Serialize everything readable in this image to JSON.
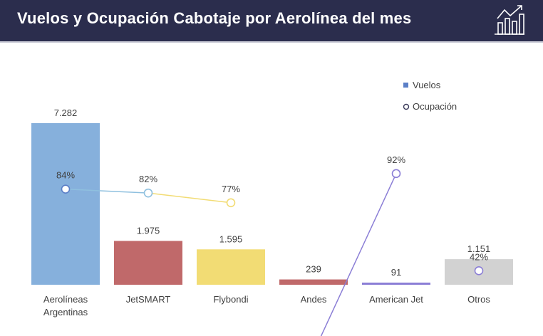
{
  "header": {
    "title": "Vuelos y Ocupación Cabotaje por Aerolínea del mes",
    "icon": "bar-chart-trend-icon",
    "bg_color": "#2b2d4d"
  },
  "chart_data": {
    "type": "bar",
    "title": "",
    "categories": [
      "Aerolíneas Argentinas",
      "JetSMART",
      "Flybondi",
      "Andes",
      "American Jet",
      "Otros"
    ],
    "category_lines": [
      [
        "Aerolíneas",
        "Argentinas"
      ],
      [
        "JetSMART"
      ],
      [
        "Flybondi"
      ],
      [
        "Andes"
      ],
      [
        "American Jet"
      ],
      [
        "Otros"
      ]
    ],
    "series": [
      {
        "name": "Vuelos",
        "type": "bar",
        "values": [
          7282,
          1975,
          1595,
          239,
          91,
          1151
        ],
        "value_labels": [
          "7.282",
          "1.975",
          "1.595",
          "239",
          "91",
          "1.151"
        ],
        "colors": [
          "#86b0dc",
          "#c0696a",
          "#f2dc74",
          "#c0696a",
          "#8b7ed6",
          "#d2d2d2"
        ]
      },
      {
        "name": "Ocupación",
        "type": "line",
        "values": [
          84,
          82,
          77,
          null,
          92,
          42
        ],
        "value_labels": [
          "84%",
          "82%",
          "77%",
          "",
          "92%",
          "42%"
        ],
        "point_colors": [
          "#5b7fc7",
          "#8fc0df",
          "#f2dc74",
          null,
          "#8b7ed6",
          "#8b7ed6"
        ],
        "segments": [
          {
            "from": 0,
            "to": 1,
            "color": "#8fc0df"
          },
          {
            "from": 1,
            "to": 2,
            "color": "#f2dc74"
          },
          {
            "from": 3,
            "to": 4,
            "color": "#8b7ed6"
          }
        ]
      }
    ],
    "ylim": [
      0,
      8000
    ],
    "legend": {
      "position": "top-right",
      "entries": [
        {
          "label": "Vuelos",
          "marker": "square",
          "color": "#5b7fc7"
        },
        {
          "label": "Ocupación",
          "marker": "circle",
          "color": "#3a3a5a"
        }
      ]
    },
    "grid": false
  }
}
